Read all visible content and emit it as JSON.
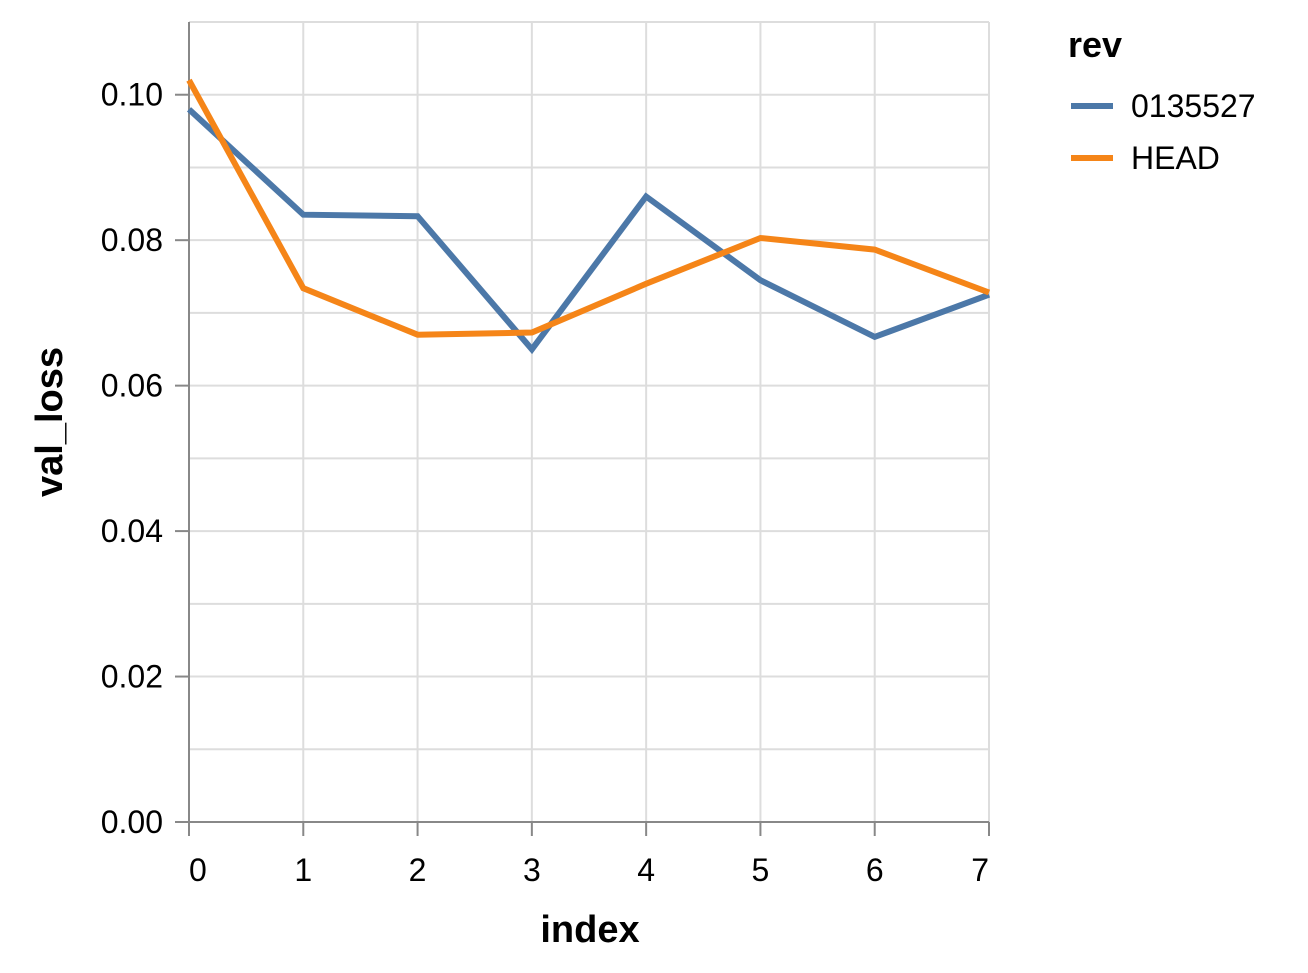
{
  "chart_data": {
    "type": "line",
    "xlabel": "index",
    "ylabel": "val_loss",
    "x": [
      0,
      1,
      2,
      3,
      4,
      5,
      6,
      7
    ],
    "xlim": [
      0,
      7
    ],
    "ylim": [
      0,
      0.11
    ],
    "x_ticks": [
      "0",
      "1",
      "2",
      "3",
      "4",
      "5",
      "6",
      "7"
    ],
    "y_ticks": [
      {
        "value": 0.0,
        "label": "0.00"
      },
      {
        "value": 0.02,
        "label": "0.02"
      },
      {
        "value": 0.04,
        "label": "0.04"
      },
      {
        "value": 0.06,
        "label": "0.06"
      },
      {
        "value": 0.08,
        "label": "0.08"
      },
      {
        "value": 0.1,
        "label": "0.10"
      }
    ],
    "grid": true,
    "legend": {
      "title": "rev",
      "placement": "right"
    },
    "series": [
      {
        "name": "0135527",
        "color": "#4c78a8",
        "values": [
          0.098,
          0.0835,
          0.0833,
          0.065,
          0.086,
          0.0745,
          0.0667,
          0.0725
        ]
      },
      {
        "name": "HEAD",
        "color": "#f58518",
        "values": [
          0.102,
          0.0734,
          0.067,
          0.0673,
          0.074,
          0.0803,
          0.0787,
          0.0728
        ]
      }
    ]
  }
}
